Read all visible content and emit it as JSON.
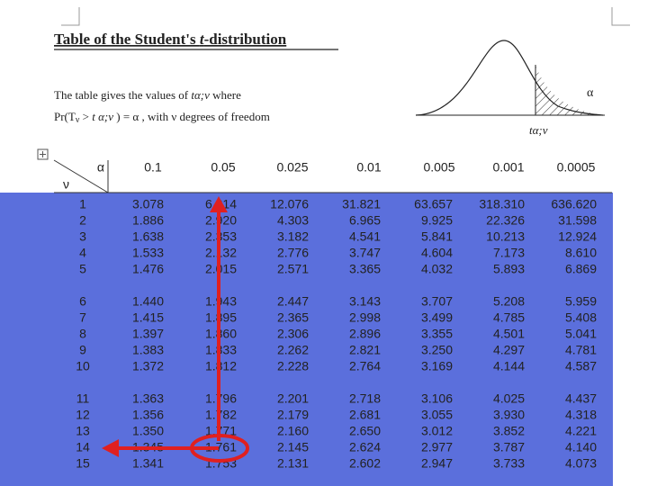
{
  "header": {
    "title": [
      "Table of the Student's ",
      "t",
      "-distribution"
    ],
    "line1": [
      "The table gives the values of ",
      "tα;ν",
      " where"
    ],
    "line2": [
      "Pr(T",
      "ν",
      " > ",
      "t α;ν",
      " ) = α , with  ν  degrees of freedom"
    ],
    "curve_alpha": "α",
    "curve_t": "tα;ν"
  },
  "table": {
    "corner_alpha": "α",
    "corner_nu": "ν",
    "columns": [
      "0.1",
      "0.05",
      "0.025",
      "0.01",
      "0.005",
      "0.001",
      "0.0005"
    ],
    "rows": [
      {
        "nu": "1",
        "values": [
          "3.078",
          "6.314",
          "12.076",
          "31.821",
          "63.657",
          "318.310",
          "636.620"
        ]
      },
      {
        "nu": "2",
        "values": [
          "1.886",
          "2.920",
          "4.303",
          "6.965",
          "9.925",
          "22.326",
          "31.598"
        ]
      },
      {
        "nu": "3",
        "values": [
          "1.638",
          "2.353",
          "3.182",
          "4.541",
          "5.841",
          "10.213",
          "12.924"
        ]
      },
      {
        "nu": "4",
        "values": [
          "1.533",
          "2.132",
          "2.776",
          "3.747",
          "4.604",
          "7.173",
          "8.610"
        ]
      },
      {
        "nu": "5",
        "values": [
          "1.476",
          "2.015",
          "2.571",
          "3.365",
          "4.032",
          "5.893",
          "6.869"
        ]
      },
      {
        "nu": "6",
        "values": [
          "1.440",
          "1.943",
          "2.447",
          "3.143",
          "3.707",
          "5.208",
          "5.959"
        ]
      },
      {
        "nu": "7",
        "values": [
          "1.415",
          "1.895",
          "2.365",
          "2.998",
          "3.499",
          "4.785",
          "5.408"
        ]
      },
      {
        "nu": "8",
        "values": [
          "1.397",
          "1.860",
          "2.306",
          "2.896",
          "3.355",
          "4.501",
          "5.041"
        ]
      },
      {
        "nu": "9",
        "values": [
          "1.383",
          "1.833",
          "2.262",
          "2.821",
          "3.250",
          "4.297",
          "4.781"
        ]
      },
      {
        "nu": "10",
        "values": [
          "1.372",
          "1.812",
          "2.228",
          "2.764",
          "3.169",
          "4.144",
          "4.587"
        ]
      },
      {
        "nu": "11",
        "values": [
          "1.363",
          "1.796",
          "2.201",
          "2.718",
          "3.106",
          "4.025",
          "4.437"
        ]
      },
      {
        "nu": "12",
        "values": [
          "1.356",
          "1.782",
          "2.179",
          "2.681",
          "3.055",
          "3.930",
          "4.318"
        ]
      },
      {
        "nu": "13",
        "values": [
          "1.350",
          "1.771",
          "2.160",
          "2.650",
          "3.012",
          "3.852",
          "4.221"
        ]
      },
      {
        "nu": "14",
        "values": [
          "1.345",
          "1.761",
          "2.145",
          "2.624",
          "2.977",
          "3.787",
          "4.140"
        ]
      },
      {
        "nu": "15",
        "values": [
          "1.341",
          "1.753",
          "2.131",
          "2.602",
          "2.947",
          "3.733",
          "4.073"
        ]
      }
    ]
  }
}
